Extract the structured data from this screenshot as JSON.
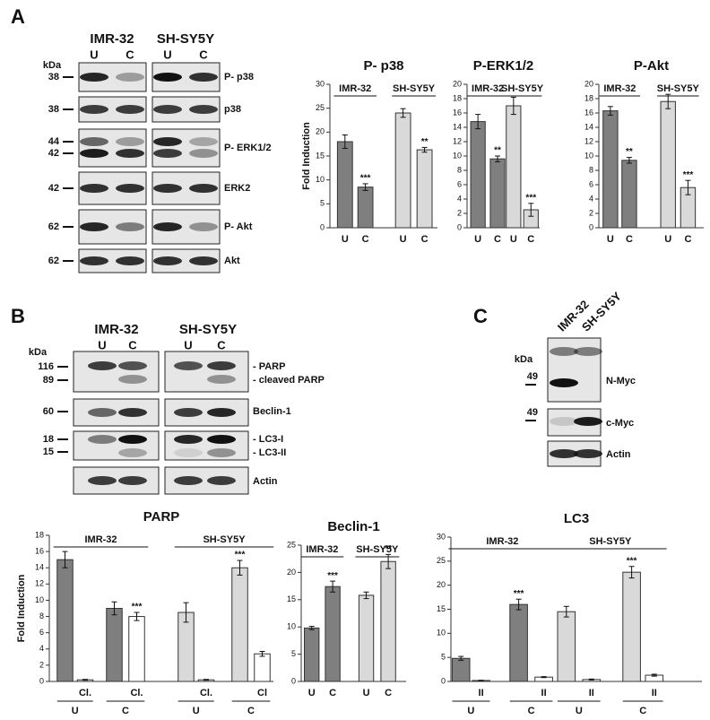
{
  "panels": {
    "a": "A",
    "b": "B",
    "c": "C"
  },
  "blot_a": {
    "cell_lines": [
      "IMR-32",
      "SH-SY5Y"
    ],
    "lanes": [
      "U",
      "C",
      "U",
      "C"
    ],
    "unit": "kDa",
    "markers": [
      38,
      38,
      44,
      42,
      42,
      62,
      62
    ],
    "labels": [
      "P- p38",
      "p38",
      "P- ERK1/2",
      "ERK2",
      "P- Akt",
      "Akt"
    ]
  },
  "blot_b": {
    "cell_lines": [
      "IMR-32",
      "SH-SY5Y"
    ],
    "lanes": [
      "U",
      "C",
      "U",
      "C"
    ],
    "unit": "kDa",
    "markers": [
      116,
      89,
      60,
      18,
      15
    ],
    "labels": [
      "- PARP",
      "- cleaved PARP",
      "Beclin-1",
      "- LC3-I",
      "- LC3-II",
      "Actin"
    ]
  },
  "blot_c": {
    "cell_lines": [
      "IMR-32",
      "SH-SY5Y"
    ],
    "unit": "kDa",
    "markers": [
      49,
      49
    ],
    "labels": [
      "N-Myc",
      "c-Myc",
      "Actin"
    ]
  },
  "chart_data": [
    {
      "type": "bar",
      "title": "P- p38",
      "y_label": "Fold Induction",
      "groups": [
        "IMR-32",
        "SH-SY5Y"
      ],
      "categories": [
        "U",
        "C",
        "U",
        "C"
      ],
      "values": [
        18,
        8.5,
        24,
        16.3
      ],
      "errors": [
        1.4,
        0.7,
        0.9,
        0.5
      ],
      "significance": [
        null,
        "***",
        null,
        "**"
      ],
      "colors": [
        "#7f7f7f",
        "#7f7f7f",
        "#d9d9d9",
        "#d9d9d9"
      ],
      "ylim": [
        0,
        30
      ],
      "yticks": [
        0,
        5,
        10,
        15,
        20,
        25,
        30
      ]
    },
    {
      "type": "bar",
      "title": "P-ERK1/2",
      "groups": [
        "IMR-32",
        "SH-SY5Y"
      ],
      "categories": [
        "U",
        "C",
        "U",
        "C"
      ],
      "values": [
        14.8,
        9.6,
        17,
        2.5
      ],
      "errors": [
        1,
        0.4,
        1.2,
        0.9
      ],
      "significance": [
        null,
        "**",
        null,
        "***"
      ],
      "colors": [
        "#7f7f7f",
        "#7f7f7f",
        "#d9d9d9",
        "#d9d9d9"
      ],
      "ylim": [
        0,
        20
      ],
      "yticks": [
        0,
        2,
        4,
        6,
        8,
        10,
        12,
        14,
        16,
        18,
        20
      ]
    },
    {
      "type": "bar",
      "title": "P-Akt",
      "groups": [
        "IMR-32",
        "SH-SY5Y"
      ],
      "categories": [
        "U",
        "C",
        "U",
        "C"
      ],
      "values": [
        16.3,
        9.4,
        17.6,
        5.6
      ],
      "errors": [
        0.6,
        0.4,
        1,
        1
      ],
      "significance": [
        null,
        "**",
        null,
        "***"
      ],
      "colors": [
        "#7f7f7f",
        "#7f7f7f",
        "#d9d9d9",
        "#d9d9d9"
      ],
      "ylim": [
        0,
        20
      ],
      "yticks": [
        0,
        2,
        4,
        6,
        8,
        10,
        12,
        14,
        16,
        18,
        20
      ]
    },
    {
      "type": "bar",
      "title": "PARP",
      "y_label": "Fold Induction",
      "groups": [
        "IMR-32",
        "SH-SY5Y"
      ],
      "subgroups": [
        "U",
        "C",
        "U",
        "C"
      ],
      "categories": [
        null,
        "Cl.",
        null,
        "Cl.",
        null,
        "Cl.",
        null,
        "Cl"
      ],
      "values": [
        15,
        0.2,
        9,
        8,
        8.5,
        0.2,
        14,
        3.4
      ],
      "errors": [
        1,
        0.05,
        0.8,
        0.5,
        1.2,
        0.05,
        0.9,
        0.3
      ],
      "significance": [
        null,
        null,
        null,
        "***",
        null,
        null,
        "***",
        null
      ],
      "colors": [
        "#7f7f7f",
        "#ffffff",
        "#7f7f7f",
        "#ffffff",
        "#d9d9d9",
        "#ffffff",
        "#d9d9d9",
        "#ffffff"
      ],
      "ylim": [
        0,
        18
      ],
      "yticks": [
        0,
        2,
        4,
        6,
        8,
        10,
        12,
        14,
        16,
        18
      ]
    },
    {
      "type": "bar",
      "title": "Beclin-1",
      "groups": [
        "IMR-32",
        "SH-SY5Y"
      ],
      "categories": [
        "U",
        "C",
        "U",
        "C"
      ],
      "values": [
        9.8,
        17.4,
        15.8,
        22
      ],
      "errors": [
        0.3,
        1,
        0.6,
        1.3
      ],
      "significance": [
        null,
        "***",
        null,
        "**"
      ],
      "colors": [
        "#7f7f7f",
        "#7f7f7f",
        "#d9d9d9",
        "#d9d9d9"
      ],
      "ylim": [
        0,
        25
      ],
      "yticks": [
        0,
        5,
        10,
        15,
        20,
        25
      ]
    },
    {
      "type": "bar",
      "title": "LC3",
      "groups": [
        "IMR-32",
        "SH-SY5Y"
      ],
      "subgroups": [
        "U",
        "C",
        "U",
        "C"
      ],
      "categories": [
        null,
        "II",
        null,
        "II",
        null,
        "II",
        null,
        "II"
      ],
      "values": [
        4.8,
        0.2,
        16,
        0.9,
        14.5,
        0.4,
        22.7,
        1.3
      ],
      "errors": [
        0.4,
        0.05,
        1.1,
        0.1,
        1.1,
        0.1,
        1.2,
        0.2
      ],
      "significance": [
        null,
        null,
        "***",
        null,
        null,
        null,
        "***",
        null
      ],
      "colors": [
        "#7f7f7f",
        "#ffffff",
        "#7f7f7f",
        "#ffffff",
        "#d9d9d9",
        "#ffffff",
        "#d9d9d9",
        "#ffffff"
      ],
      "ylim": [
        0,
        30
      ],
      "yticks": [
        0,
        5,
        10,
        15,
        20,
        25,
        30
      ]
    }
  ]
}
